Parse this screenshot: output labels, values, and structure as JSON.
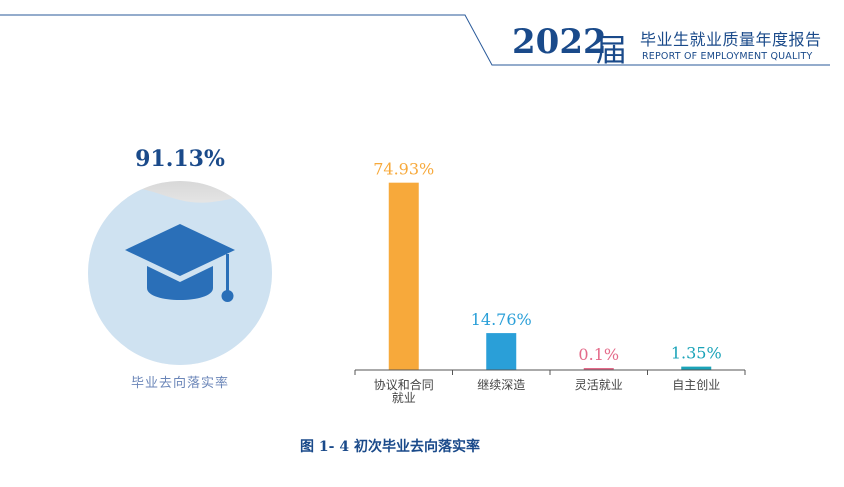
{
  "header": {
    "year": "2022",
    "year_suffix": "届",
    "report_title_cn": "毕业生就业质量年度报告",
    "report_title_en": "REPORT OF EMPLOYMENT QUALITY"
  },
  "rate_panel": {
    "value": "91.13%",
    "label": "毕业去向落实率",
    "icon": "graduation-cap-icon",
    "fill_fraction": 0.9113,
    "colors": {
      "circle": "#cfe2f1",
      "cap": "#2a6fb8",
      "value": "#1a4a8a"
    }
  },
  "chart_data": {
    "type": "bar",
    "categories": [
      "协议和合同就业",
      "继续深造",
      "灵活就业",
      "自主创业"
    ],
    "category_labels": [
      [
        "协议和合同",
        "就业"
      ],
      [
        "继续深造"
      ],
      [
        "灵活就业"
      ],
      [
        "自主创业"
      ]
    ],
    "values": [
      74.93,
      14.76,
      0.1,
      1.35
    ],
    "value_labels": [
      "74.93%",
      "14.76%",
      "0.1%",
      "1.35%"
    ],
    "colors": [
      "#f7a93b",
      "#2a9fd8",
      "#e46b8a",
      "#1aa3b8"
    ],
    "ylim": [
      0,
      80
    ],
    "grid": false,
    "title": "",
    "xlabel": "",
    "ylabel": ""
  },
  "caption": "图 1- 4 初次毕业去向落实率"
}
